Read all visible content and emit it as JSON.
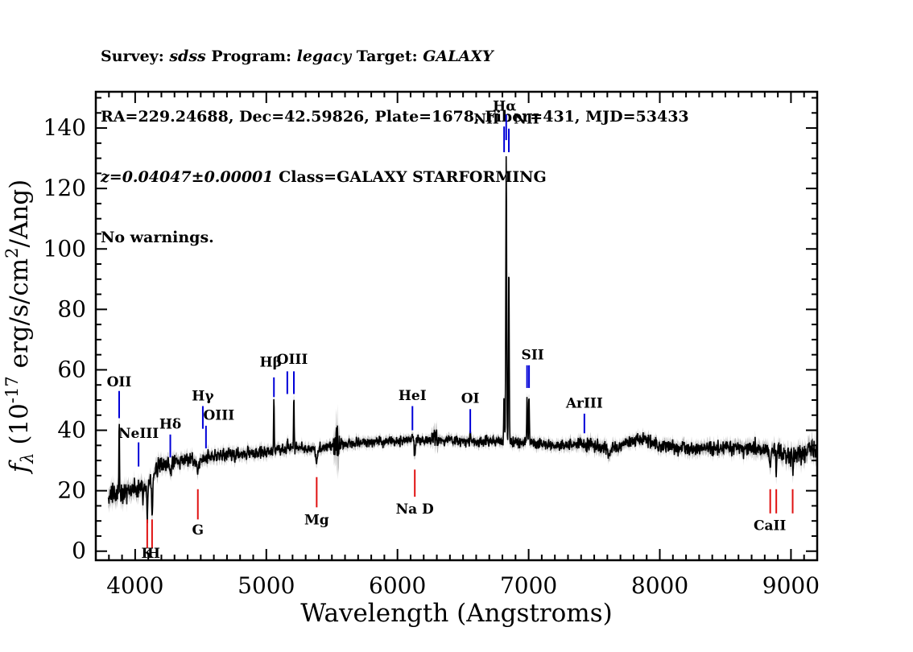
{
  "header": {
    "survey_label": "Survey: ",
    "survey_value": "sdss",
    "program_label": " Program: ",
    "program_value": "legacy",
    "target_label": " Target: ",
    "target_value": "GALAXY",
    "coords": "RA=229.24688, Dec=42.59826, Plate=1678, Fiber=431, MJD=53433",
    "redshift": "z=0.04047±0.00001",
    "class_info": " Class=GALAXY STARFORMING",
    "warnings": "No warnings."
  },
  "chart_data": {
    "type": "line",
    "title": "",
    "xlabel": "Wavelength (Angstroms)",
    "ylabel": "f_λ (10^-17 erg/s/cm^2/Ang)",
    "ylabel_parts": [
      {
        "t": "f",
        "size": 31,
        "italic": true
      },
      {
        "t": "λ",
        "dy": 7,
        "size": 21,
        "italic": true
      },
      {
        "t": " (10",
        "dy": -7,
        "size": 31
      },
      {
        "t": "-17",
        "dy": -12,
        "size": 21
      },
      {
        "t": " erg/s/cm",
        "dy": 12,
        "size": 31
      },
      {
        "t": "2",
        "dy": -12,
        "size": 21
      },
      {
        "t": "/Ang)",
        "dy": 12,
        "size": 31
      }
    ],
    "xlim": [
      3700,
      9200
    ],
    "ylim": [
      -3,
      152
    ],
    "xticks": [
      4000,
      5000,
      6000,
      7000,
      8000,
      9000
    ],
    "yticks": [
      0,
      20,
      40,
      60,
      80,
      100,
      120,
      140
    ],
    "xminor": 100,
    "yminor": 5,
    "grid": false,
    "legend": false,
    "wave_start": 3795,
    "wave_end": 9245,
    "wave_step": 2.4,
    "colors": {
      "trace": "#000000",
      "band": "#b8b8b8",
      "emission_marker": "#0000d8",
      "absorption_marker": "#e01111"
    },
    "continuum": [
      [
        3795,
        17.5
      ],
      [
        3850,
        18.5
      ],
      [
        3900,
        19.5
      ],
      [
        3960,
        20.5
      ],
      [
        4020,
        21
      ],
      [
        4080,
        21.5
      ],
      [
        4130,
        23
      ],
      [
        4158,
        27
      ],
      [
        4210,
        28.5
      ],
      [
        4270,
        29
      ],
      [
        4330,
        30
      ],
      [
        4400,
        30.5
      ],
      [
        4460,
        29.8
      ],
      [
        4520,
        30.5
      ],
      [
        4590,
        31.5
      ],
      [
        4670,
        31.8
      ],
      [
        4760,
        32
      ],
      [
        4860,
        32.2
      ],
      [
        4960,
        32.8
      ],
      [
        5060,
        33.2
      ],
      [
        5160,
        34
      ],
      [
        5260,
        34.3
      ],
      [
        5360,
        33.8
      ],
      [
        5470,
        34.5
      ],
      [
        5570,
        35.2
      ],
      [
        5670,
        35.8
      ],
      [
        5770,
        36
      ],
      [
        5870,
        36.2
      ],
      [
        5970,
        36.4
      ],
      [
        6070,
        36.8
      ],
      [
        6170,
        36.5
      ],
      [
        6270,
        36.8
      ],
      [
        6370,
        37
      ],
      [
        6470,
        36.3
      ],
      [
        6570,
        36.5
      ],
      [
        6670,
        36.2
      ],
      [
        6770,
        36.5
      ],
      [
        6870,
        36.3
      ],
      [
        6970,
        36
      ],
      [
        7070,
        35.8
      ],
      [
        7170,
        35.2
      ],
      [
        7270,
        35
      ],
      [
        7370,
        35.5
      ],
      [
        7470,
        35.2
      ],
      [
        7570,
        34.3
      ],
      [
        7670,
        34.2
      ],
      [
        7770,
        36
      ],
      [
        7850,
        37.3
      ],
      [
        7930,
        36.2
      ],
      [
        8010,
        35
      ],
      [
        8110,
        34.3
      ],
      [
        8210,
        33.8
      ],
      [
        8310,
        34.2
      ],
      [
        8410,
        33.8
      ],
      [
        8510,
        34
      ],
      [
        8610,
        33.6
      ],
      [
        8710,
        34
      ],
      [
        8810,
        33.4
      ],
      [
        8900,
        32.8
      ],
      [
        8960,
        31.8
      ],
      [
        9020,
        31.2
      ],
      [
        9080,
        32.2
      ],
      [
        9150,
        33.2
      ],
      [
        9245,
        34
      ]
    ],
    "error": [
      [
        3795,
        3.2
      ],
      [
        3900,
        2.8
      ],
      [
        4000,
        2.6
      ],
      [
        4150,
        2.2
      ],
      [
        4400,
        1.9
      ],
      [
        4800,
        1.7
      ],
      [
        5200,
        1.6
      ],
      [
        5500,
        1.5
      ],
      [
        5548,
        8
      ],
      [
        5562,
        1.5
      ],
      [
        5900,
        1.4
      ],
      [
        6250,
        1.4
      ],
      [
        6298,
        3.2
      ],
      [
        6320,
        1.4
      ],
      [
        6700,
        1.4
      ],
      [
        6860,
        1.6
      ],
      [
        7200,
        1.5
      ],
      [
        7590,
        2.1
      ],
      [
        7700,
        1.6
      ],
      [
        8000,
        1.7
      ],
      [
        8250,
        2
      ],
      [
        8450,
        1.9
      ],
      [
        8650,
        2.2
      ],
      [
        8850,
        2.4
      ],
      [
        9000,
        2.6
      ],
      [
        9150,
        2.9
      ],
      [
        9245,
        3.5
      ]
    ],
    "emission_lines": [
      [
        3878,
        25,
        2.5
      ],
      [
        5058,
        18,
        2.5
      ],
      [
        5160,
        4.5,
        2.5
      ],
      [
        5210,
        16.5,
        2.5
      ],
      [
        6114,
        2.5,
        3
      ],
      [
        6555,
        3.5,
        3
      ],
      [
        6813,
        16,
        2.8
      ],
      [
        6829,
        94,
        3.2
      ],
      [
        6849,
        60,
        2.8
      ],
      [
        6988,
        16,
        2.5
      ],
      [
        7003,
        17,
        2.5
      ]
    ],
    "absorption_lines": [
      [
        3935,
        -3,
        2.5
      ],
      [
        3970,
        -3.5,
        2.5
      ],
      [
        4060,
        -5,
        2.5
      ],
      [
        4092,
        -12,
        3.2
      ],
      [
        4129,
        -12,
        3.2
      ],
      [
        4168,
        -4,
        2.5
      ],
      [
        4268,
        -2.5,
        5
      ],
      [
        4478,
        -4,
        5
      ],
      [
        5384,
        -4.5,
        7
      ],
      [
        6132,
        -6.5,
        3.5
      ],
      [
        7615,
        -2,
        12
      ],
      [
        8842,
        -7,
        3.5
      ],
      [
        8888,
        -6,
        3.5
      ],
      [
        9013,
        -6.5,
        3.5
      ]
    ],
    "markers": [
      {
        "id": "OII",
        "label": "OII",
        "type": "emission",
        "wavelength": 3878,
        "line": [
          44,
          53
        ],
        "label_y": 54.5,
        "label_dx": 0
      },
      {
        "id": "NeIII",
        "label": "NeIII",
        "type": "emission",
        "wavelength": 4026,
        "line": [
          28,
          36
        ],
        "label_y": 37.5,
        "label_dx": 0
      },
      {
        "id": "Hdelta",
        "label": "Hδ",
        "type": "emission",
        "wavelength": 4268,
        "line": [
          31,
          38.6
        ],
        "label_y": 40.5,
        "label_dx": 0
      },
      {
        "id": "Hgamma",
        "label": "Hγ",
        "type": "emission",
        "wavelength": 4516,
        "line": [
          40.5,
          48
        ],
        "label_y": 49.8,
        "label_dx": 0
      },
      {
        "id": "OIII4363",
        "label": "OIII",
        "type": "emission",
        "wavelength": 4540,
        "line": [
          34,
          41.5
        ],
        "label_y": 43.5,
        "label_dx": 16
      },
      {
        "id": "Hbeta",
        "label": "Hβ",
        "type": "emission",
        "wavelength": 5058,
        "line": [
          51,
          57.5
        ],
        "label_y": 61,
        "label_dx": -4
      },
      {
        "id": "OIII4959",
        "label": "",
        "type": "emission",
        "wavelength": 5160,
        "line": [
          52,
          59.5
        ],
        "label_y": null,
        "label_dx": 0
      },
      {
        "id": "OIII5007",
        "label": "OIII",
        "type": "emission",
        "wavelength": 5210,
        "line": [
          52,
          59.5
        ],
        "label_y": 62,
        "label_dx": -2
      },
      {
        "id": "HeI",
        "label": "HeI",
        "type": "emission",
        "wavelength": 6114,
        "line": [
          40,
          48
        ],
        "label_y": 50,
        "label_dx": 0
      },
      {
        "id": "OI",
        "label": "OI",
        "type": "emission",
        "wavelength": 6555,
        "line": [
          39,
          47
        ],
        "label_y": 49,
        "label_dx": 0
      },
      {
        "id": "NIIa",
        "label": "NII",
        "type": "emission",
        "wavelength": 6813,
        "line": [
          132,
          140.5
        ],
        "label_y": 141.5,
        "label_dx": -22
      },
      {
        "id": "Halpha",
        "label": "Hα",
        "type": "emission",
        "wavelength": 6829,
        "line": [
          136,
          144.5
        ],
        "label_y": 145.8,
        "label_dx": -2
      },
      {
        "id": "NIIb",
        "label": "NII",
        "type": "emission",
        "wavelength": 6849,
        "line": [
          132,
          139.8
        ],
        "label_y": 141.5,
        "label_dx": 22
      },
      {
        "id": "SIIa",
        "label": "SII",
        "type": "emission",
        "wavelength": 6988,
        "line": [
          54,
          61.5
        ],
        "label_y": 63.5,
        "label_dx": 7
      },
      {
        "id": "SIIb",
        "label": "",
        "type": "emission",
        "wavelength": 7003,
        "line": [
          54,
          61.5
        ],
        "label_y": null,
        "label_dx": 0
      },
      {
        "id": "ArIII",
        "label": "ArIII",
        "type": "emission",
        "wavelength": 7425,
        "line": [
          39,
          45.5
        ],
        "label_y": 47.5,
        "label_dx": 0
      },
      {
        "id": "CaK",
        "label": "K",
        "type": "absorption",
        "wavelength": 4092,
        "line": [
          1,
          10.5
        ],
        "label_y": -2.2,
        "label_dx": 0
      },
      {
        "id": "CaH",
        "label": "H",
        "type": "absorption",
        "wavelength": 4129,
        "line": [
          1,
          10.5
        ],
        "label_y": -2.2,
        "label_dx": 2
      },
      {
        "id": "Gband",
        "label": "G",
        "type": "absorption",
        "wavelength": 4478,
        "line": [
          10.5,
          20.5
        ],
        "label_y": 5.5,
        "label_dx": 0
      },
      {
        "id": "Mg",
        "label": "Mg",
        "type": "absorption",
        "wavelength": 5384,
        "line": [
          14.5,
          24.5
        ],
        "label_y": 8.8,
        "label_dx": 0
      },
      {
        "id": "NaD",
        "label": "Na D",
        "type": "absorption",
        "wavelength": 6132,
        "line": [
          18,
          27
        ],
        "label_y": 12.5,
        "label_dx": 0
      },
      {
        "id": "CaIIa",
        "label": "",
        "type": "absorption",
        "wavelength": 8842,
        "line": [
          12.5,
          20.5
        ],
        "label_y": null,
        "label_dx": 0
      },
      {
        "id": "CaIIb",
        "label": "CaII",
        "type": "absorption",
        "wavelength": 8888,
        "line": [
          12.5,
          20.5
        ],
        "label_y": 7,
        "label_dx": -8
      },
      {
        "id": "CaIIc",
        "label": "",
        "type": "absorption",
        "wavelength": 9013,
        "line": [
          12.5,
          20.5
        ],
        "label_y": null,
        "label_dx": 0
      }
    ]
  }
}
